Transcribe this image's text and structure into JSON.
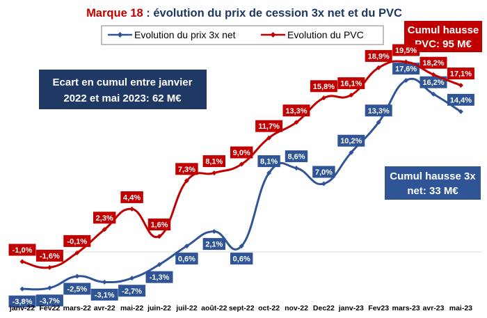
{
  "chart_data": {
    "type": "line",
    "title_prefix": "Marque 18",
    "title_rest": " : évolution du prix de cession 3x net et du PVC",
    "categories": [
      "janv-22",
      "Fev22",
      "mars-22",
      "avr-22",
      "mai-22",
      "juin-22",
      "juil-22",
      "août-22",
      "sept-22",
      "oct-22",
      "nov-22",
      "Dec22",
      "janv-23",
      "Fev23",
      "mars-23",
      "avr-23",
      "mai-23"
    ],
    "series": [
      {
        "name": "Evolution du prix 3x net",
        "color": "#2f5597",
        "values": [
          -3.8,
          -3.7,
          -2.5,
          -3.1,
          -2.7,
          -1.3,
          0.6,
          2.1,
          0.6,
          8.1,
          8.6,
          7.0,
          10.2,
          13.3,
          17.6,
          16.2,
          14.4
        ],
        "labels": [
          "-3,8%",
          "-3,7%",
          "-2,5%",
          "-3,1%",
          "-2,7%",
          "-1,3%",
          "0,6%",
          "2,1%",
          "0,6%",
          "8,1%",
          "8,6%",
          "7,0%",
          "10,2%",
          "13,3%",
          "17,6%",
          "16,2%",
          "14,4%"
        ]
      },
      {
        "name": "Evolution du PVC",
        "color": "#c00000",
        "values": [
          -1.0,
          -1.6,
          -0.1,
          2.3,
          4.4,
          1.6,
          7.3,
          8.1,
          9.0,
          11.7,
          13.3,
          15.8,
          16.1,
          18.9,
          19.5,
          18.2,
          17.1
        ],
        "labels": [
          "-1,0%",
          "-1,6%",
          "-0,1%",
          "2,3%",
          "4,4%",
          "1,6%",
          "7,3%",
          "8,1%",
          "9,0%",
          "11,7%",
          "13,3%",
          "15,8%",
          "16,1%",
          "18,9%",
          "19,5%",
          "18,2%",
          "17,1%"
        ]
      }
    ],
    "ylim": [
      -6,
      22
    ],
    "grid": "zero-line only",
    "legend_position": "top"
  },
  "annotations": {
    "ecart_lines": [
      "Ecart en cumul entre janvier",
      "2022 et mai 2023: 62 M€"
    ],
    "pvc_lines": [
      "Cumul hausse",
      "PVC: 95 M€"
    ],
    "net_lines": [
      "Cumul hausse 3x",
      "net: 33 M€"
    ],
    "ecart_color": "#1f3864",
    "pvc_color": "#c00000",
    "net_color": "#2f5597"
  }
}
